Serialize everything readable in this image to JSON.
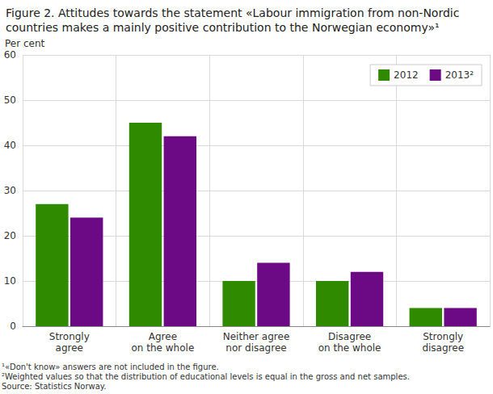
{
  "chart_data": {
    "type": "bar",
    "title": "Figure 2. Attitudes towards the statement «Labour immigration from non-Nordic countries makes a mainly positive contribution to the Norwegian economy»¹",
    "ylabel": "Per cent",
    "categories": [
      "Strongly\nagree",
      "Agree\non the whole",
      "Neither agree\nnor disagree",
      "Disagree\non the whole",
      "Strongly\ndisagree"
    ],
    "series": [
      {
        "name": "2012",
        "color": "#2f8a00",
        "values": [
          27,
          45,
          10,
          10,
          4
        ]
      },
      {
        "name": "2013²",
        "color": "#6b0a84",
        "values": [
          24,
          42,
          14,
          12,
          4
        ]
      }
    ],
    "ylim": [
      0,
      60
    ],
    "yticks": [
      0,
      10,
      20,
      30,
      40,
      50,
      60
    ],
    "grid": true,
    "legend": "upper right",
    "annotations": [
      "¹«Don't know» answers are not included in the figure.",
      "²Weighted values so that the distribution of educational levels is equal in the gross and net samples.",
      "Source: Statistics Norway."
    ]
  }
}
